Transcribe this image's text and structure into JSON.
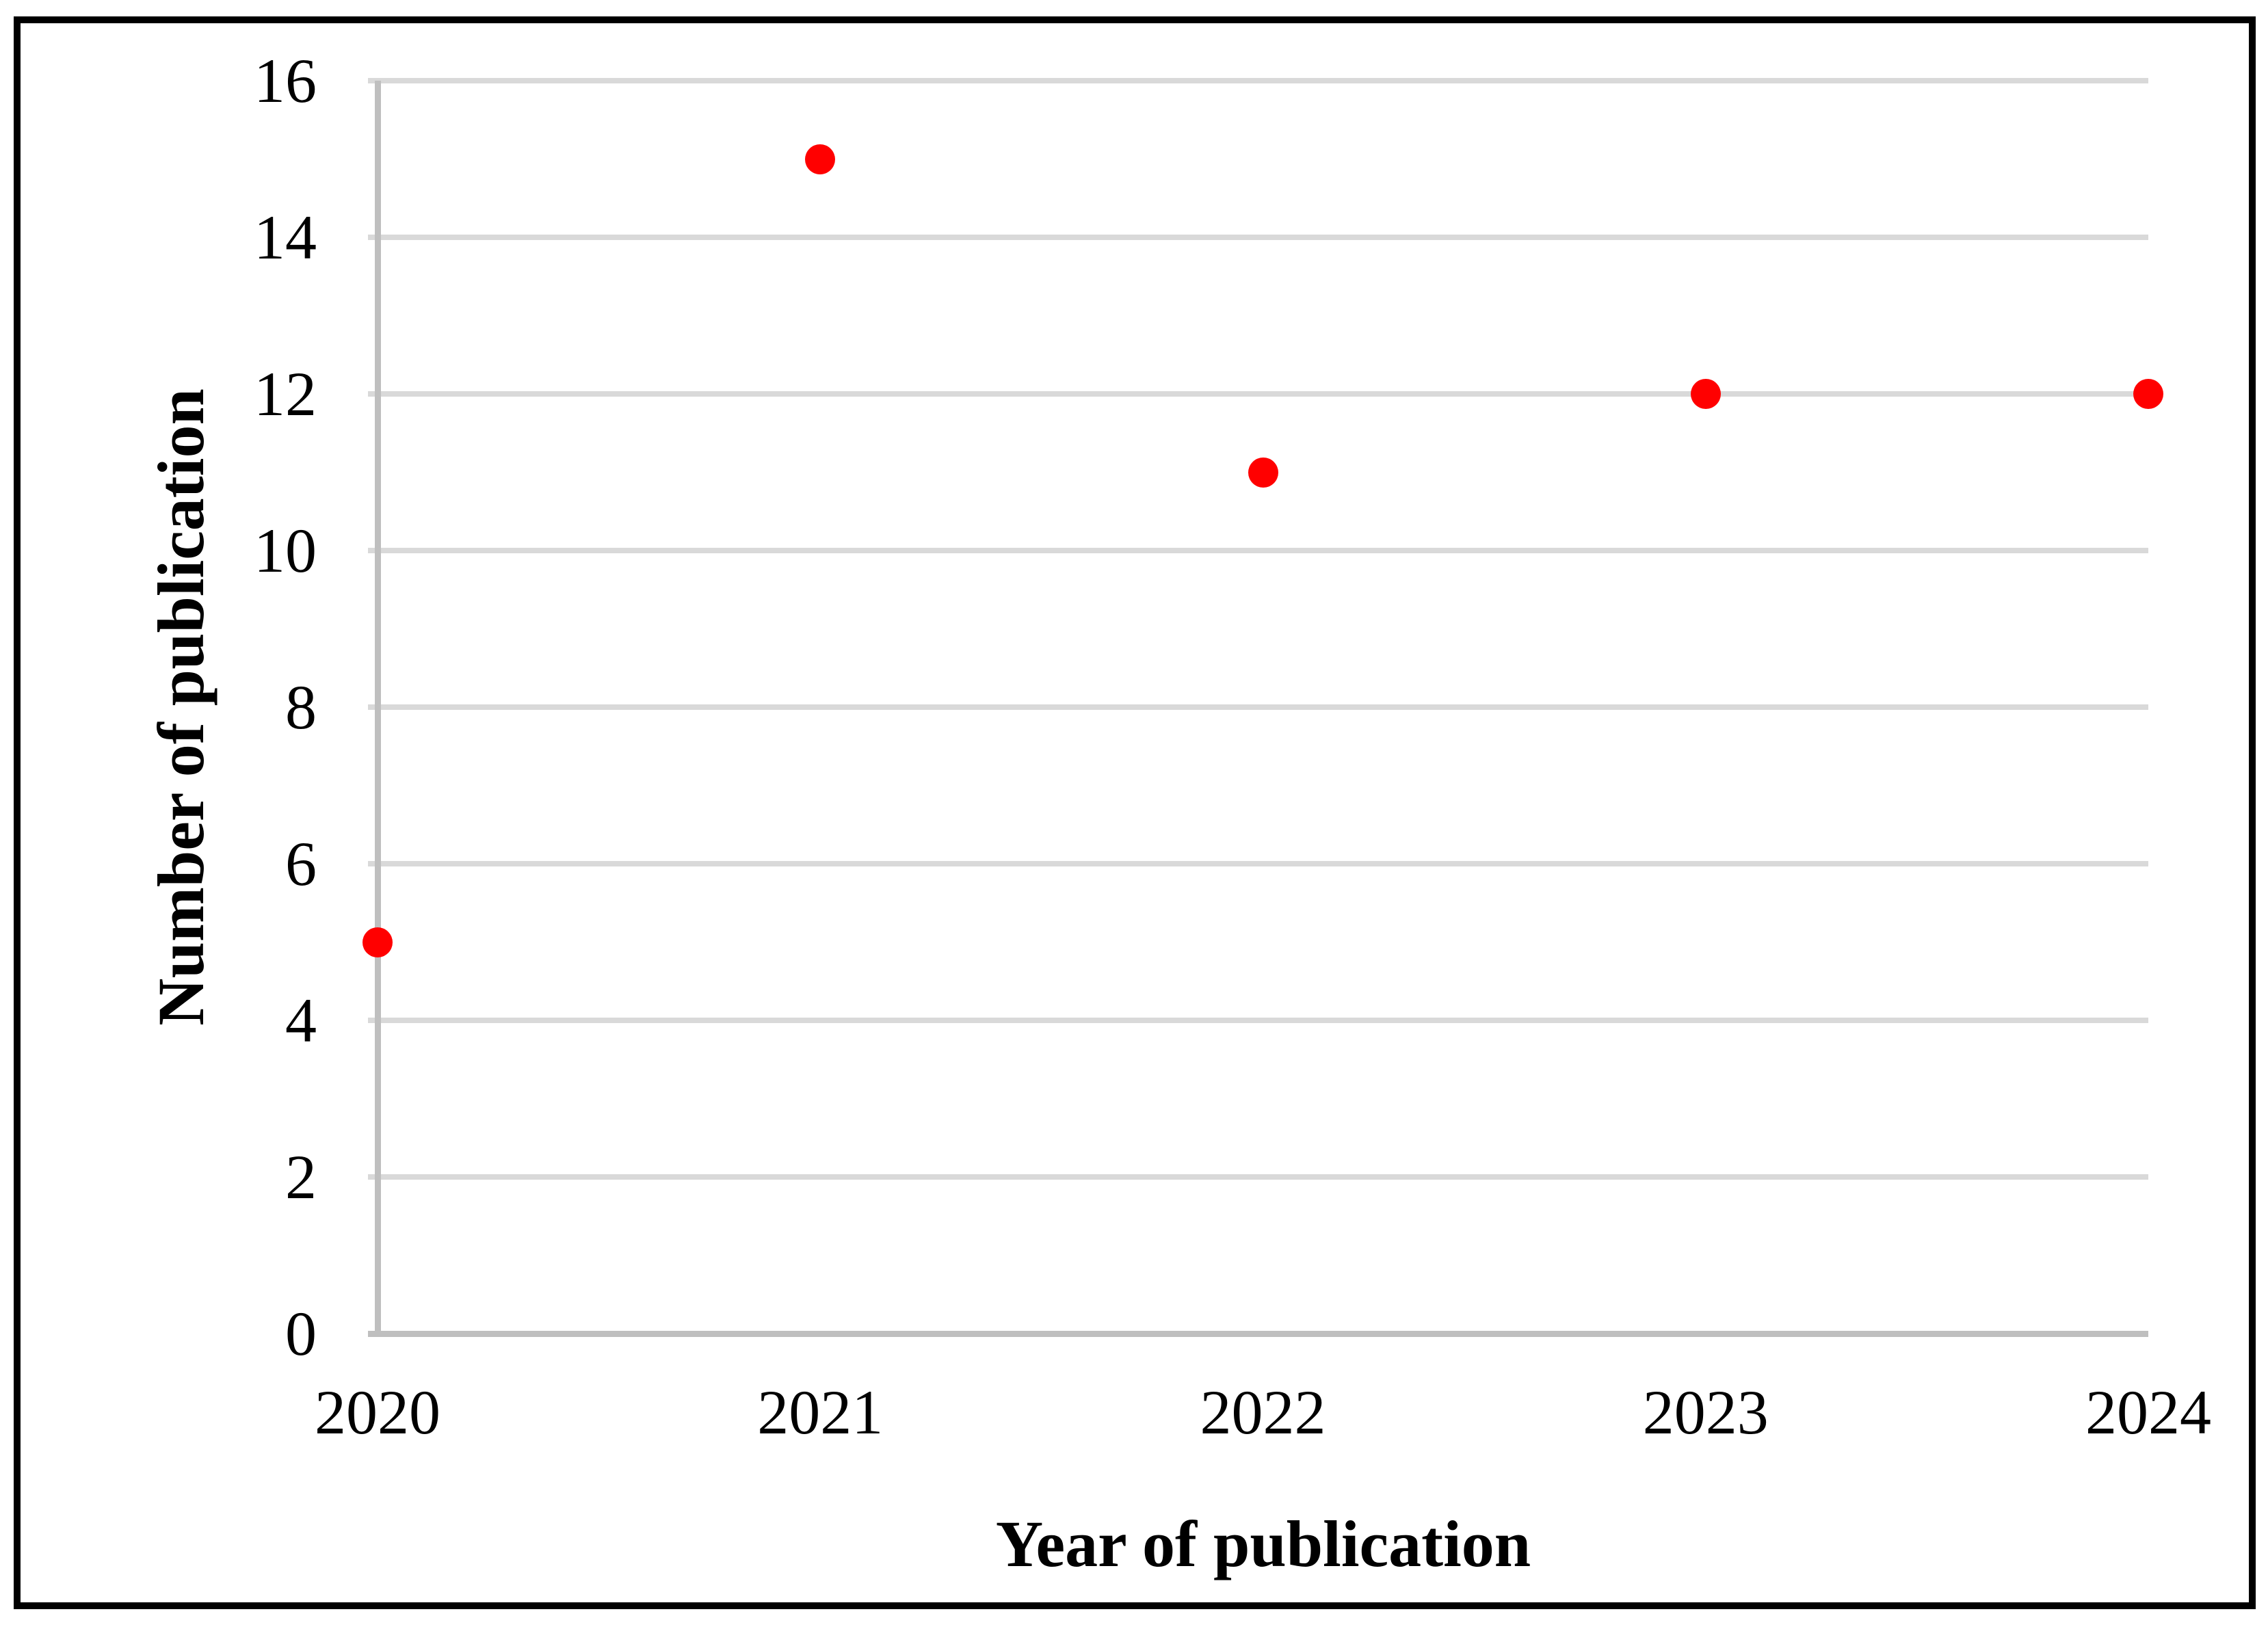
{
  "figure": {
    "y_axis_title": "Number of publication",
    "x_axis_title": "Year of publication"
  },
  "chart_data": {
    "type": "scatter",
    "title": "",
    "xlabel": "Year of publication",
    "ylabel": "Number of publication",
    "x": [
      2020,
      2021,
      2022,
      2023,
      2024
    ],
    "series": [
      {
        "name": "Number of publication",
        "values": [
          5,
          15,
          11,
          12,
          12
        ]
      }
    ],
    "x_tick_labels": [
      "2020",
      "2021",
      "2022",
      "2023",
      "2024"
    ],
    "y_tick_labels": [
      "0",
      "2",
      "4",
      "6",
      "8",
      "10",
      "12",
      "14",
      "16"
    ],
    "y_tick_values": [
      0,
      2,
      4,
      6,
      8,
      10,
      12,
      14,
      16
    ],
    "ylim": [
      0,
      16
    ],
    "xlim": [
      2020,
      2024
    ],
    "grid": "horizontal",
    "legend": "none",
    "colors": {
      "marker": "#FF0000",
      "gridline": "#D9D9D9",
      "axis_line": "#BFBFBF",
      "text": "#000000",
      "border": "#000000",
      "background": "#FFFFFF"
    }
  }
}
